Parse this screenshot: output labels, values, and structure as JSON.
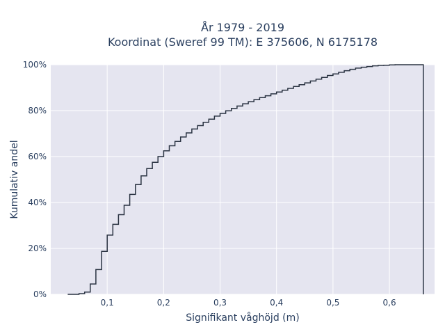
{
  "chart_data": {
    "type": "line",
    "subtype": "cumulative-step",
    "title_line1": "År 1979 - 2019",
    "title_line2": "Koordinat (Sweref 99 TM): E 375606, N 6175178",
    "xlabel": "Signifikant våghöjd (m)",
    "ylabel": "Kumulativ andel",
    "xlim": [
      0.0,
      0.68
    ],
    "ylim": [
      0,
      100
    ],
    "x_ticks": [
      {
        "value": 0.1,
        "label": "0,1"
      },
      {
        "value": 0.2,
        "label": "0,2"
      },
      {
        "value": 0.3,
        "label": "0,3"
      },
      {
        "value": 0.4,
        "label": "0,4"
      },
      {
        "value": 0.5,
        "label": "0,5"
      },
      {
        "value": 0.6,
        "label": "0,6"
      }
    ],
    "y_ticks": [
      {
        "value": 0,
        "label": "0%"
      },
      {
        "value": 20,
        "label": "20%"
      },
      {
        "value": 40,
        "label": "40%"
      },
      {
        "value": 60,
        "label": "60%"
      },
      {
        "value": 80,
        "label": "80%"
      },
      {
        "value": 100,
        "label": "100%"
      }
    ],
    "grid": true,
    "background": "#e5e5f0",
    "line_color": "#2a3342",
    "series": [
      {
        "x": [
          0.03,
          0.05,
          0.06,
          0.07,
          0.08,
          0.09,
          0.1,
          0.11,
          0.12,
          0.13,
          0.14,
          0.15,
          0.16,
          0.17,
          0.18,
          0.19,
          0.2,
          0.21,
          0.22,
          0.23,
          0.24,
          0.25,
          0.26,
          0.27,
          0.28,
          0.29,
          0.3,
          0.31,
          0.32,
          0.33,
          0.34,
          0.35,
          0.36,
          0.37,
          0.38,
          0.39,
          0.4,
          0.41,
          0.42,
          0.43,
          0.44,
          0.45,
          0.46,
          0.47,
          0.48,
          0.49,
          0.5,
          0.51,
          0.52,
          0.53,
          0.54,
          0.55,
          0.56,
          0.57,
          0.58,
          0.59,
          0.6,
          0.61,
          0.62,
          0.63,
          0.64,
          0.65,
          0.66
        ],
        "y": [
          0.0,
          0.3,
          1.0,
          4.5,
          10.8,
          18.7,
          25.8,
          30.5,
          34.7,
          38.8,
          43.5,
          47.8,
          51.6,
          54.8,
          57.5,
          60.0,
          62.5,
          64.7,
          66.6,
          68.5,
          70.3,
          72.0,
          73.5,
          74.9,
          76.3,
          77.6,
          78.8,
          79.9,
          81.0,
          82.0,
          83.0,
          83.9,
          84.8,
          85.7,
          86.5,
          87.3,
          88.1,
          88.9,
          89.7,
          90.5,
          91.3,
          92.1,
          92.9,
          93.7,
          94.5,
          95.3,
          96.0,
          96.7,
          97.4,
          98.0,
          98.5,
          98.9,
          99.2,
          99.5,
          99.7,
          99.8,
          99.9,
          100.0,
          100.0,
          100.0,
          100.0,
          100.0,
          0.0
        ]
      }
    ]
  }
}
